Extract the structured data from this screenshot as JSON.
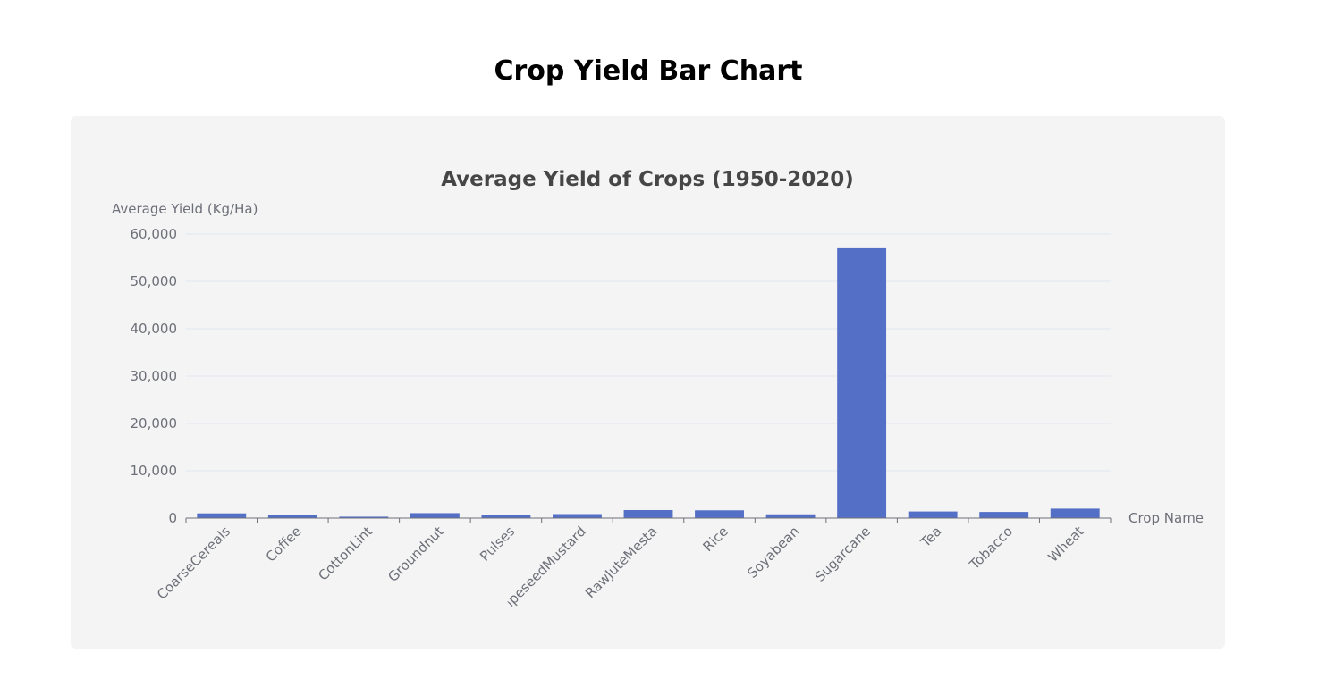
{
  "page": {
    "heading": "Crop Yield Bar Chart"
  },
  "colors": {
    "bar": "#5470c6",
    "card_background": "#f4f4f4",
    "axis_text": "#6e7079",
    "title_text": "#464646"
  },
  "chart_data": {
    "type": "bar",
    "title": "Average Yield of Crops (1950-2020)",
    "xlabel": "Crop Name",
    "ylabel": "Average Yield (Kg/Ha)",
    "categories": [
      "CoarseCereals",
      "Coffee",
      "CottonLint",
      "Groundnut",
      "Pulses",
      "RapeseedMustard",
      "RawJuteMesta",
      "Rice",
      "Soyabean",
      "Sugarcane",
      "Tea",
      "Tobacco",
      "Wheat"
    ],
    "values": [
      1000,
      700,
      300,
      1050,
      650,
      850,
      1700,
      1650,
      800,
      57000,
      1400,
      1300,
      2000
    ],
    "ylim": [
      0,
      60000
    ],
    "yticks": [
      0,
      10000,
      20000,
      30000,
      40000,
      50000,
      60000
    ],
    "ytick_labels": [
      "0",
      "10,000",
      "20,000",
      "30,000",
      "40,000",
      "50,000",
      "60,000"
    ],
    "grid": true,
    "legend": "none"
  }
}
